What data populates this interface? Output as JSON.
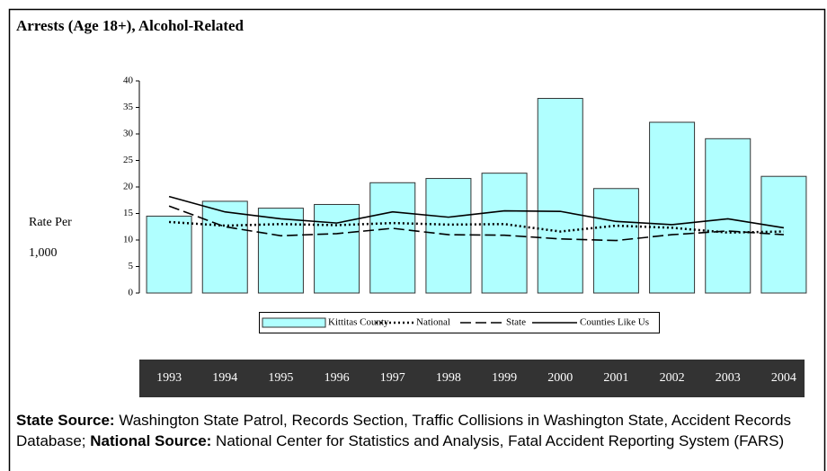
{
  "chart_data": {
    "type": "bar",
    "title": "Arrests (Age 18+), Alcohol-Related",
    "ylabel": [
      "Rate Per",
      "1,000"
    ],
    "categories": [
      "1993",
      "1994",
      "1995",
      "1996",
      "1997",
      "1998",
      "1999",
      "2000",
      "2001",
      "2002",
      "2003",
      "2004"
    ],
    "series": [
      {
        "name": "Kittitas County",
        "type": "bar",
        "color": "#b0ffff",
        "values": [
          14.5,
          17.3,
          16.0,
          16.7,
          20.8,
          21.6,
          22.6,
          36.7,
          19.7,
          32.2,
          29.1,
          22.0
        ]
      },
      {
        "name": "National",
        "type": "line",
        "dash": "dotted",
        "color": "#000000",
        "values": [
          13.4,
          12.7,
          13.0,
          12.8,
          13.2,
          12.9,
          13.0,
          11.6,
          12.7,
          12.3,
          11.4,
          11.6
        ]
      },
      {
        "name": "State",
        "type": "line",
        "dash": "dashed",
        "color": "#000000",
        "values": [
          16.4,
          12.5,
          10.8,
          11.2,
          12.2,
          11.0,
          10.9,
          10.2,
          9.9,
          11.0,
          11.7,
          11.0
        ]
      },
      {
        "name": "Counties Like Us",
        "type": "line",
        "dash": "solid",
        "color": "#000000",
        "values": [
          18.2,
          15.3,
          14.0,
          13.2,
          15.3,
          14.3,
          15.5,
          15.4,
          13.5,
          12.9,
          14.0,
          12.3
        ]
      }
    ],
    "ylim": [
      0,
      40
    ],
    "yticks": [
      0,
      5,
      10,
      15,
      20,
      25,
      30,
      35,
      40
    ],
    "legend": "bottom"
  },
  "source": [
    {
      "text": "State Source:",
      "bold": true
    },
    {
      "text": " Washington State Patrol, Records Section, Traffic Collisions in Washington State, Accident Records Database; ",
      "bold": false
    },
    {
      "text": "National Source:",
      "bold": true
    },
    {
      "text": "  National Center for Statistics and Analysis, Fatal Accident Reporting System (FARS)",
      "bold": false
    }
  ]
}
